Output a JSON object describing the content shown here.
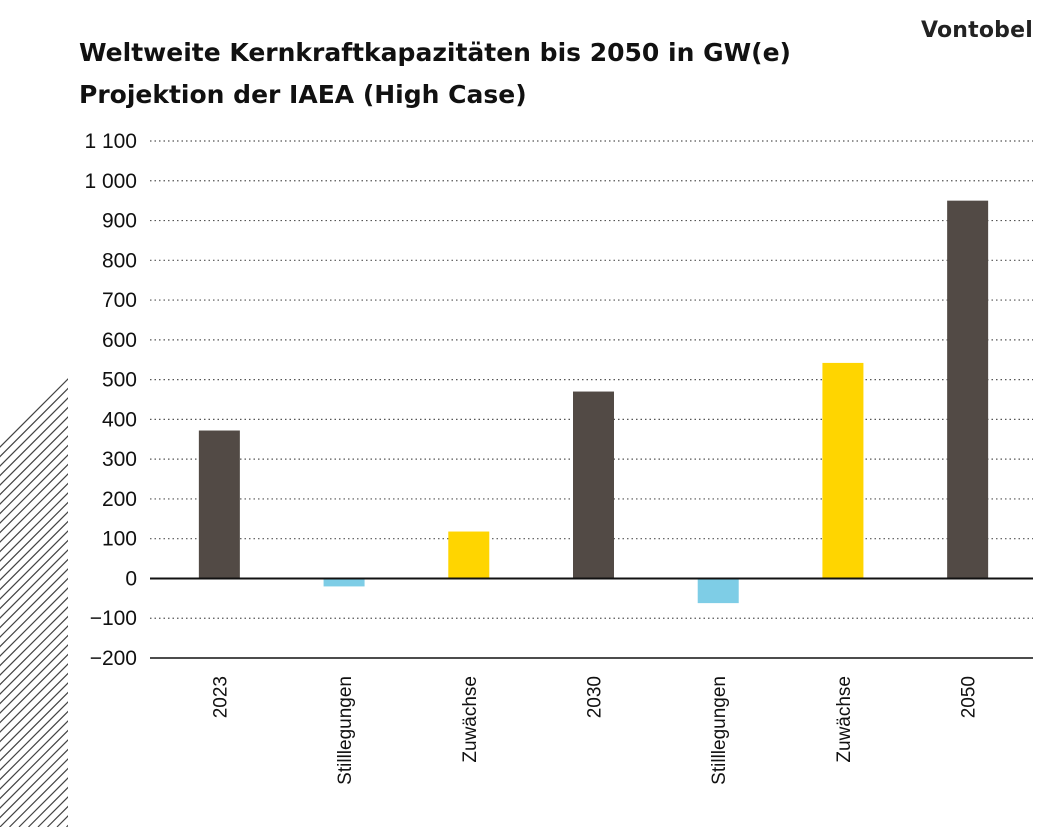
{
  "brand": "Vontobel",
  "title": "Weltweite Kernkraftkapazitäten bis 2050 in GW(e)",
  "subtitle": "Projektion der IAEA (High Case)",
  "colors": {
    "total": "#524a45",
    "decrease": "#7ecde6",
    "increase": "#ffd500",
    "hatch": "#444444"
  },
  "chart_data": {
    "type": "bar",
    "title": "Weltweite Kernkraftkapazitäten bis 2050 in GW(e)",
    "subtitle": "Projektion der IAEA (High Case)",
    "categories": [
      "2023",
      "Stilllegungen",
      "Zuwächse",
      "2030",
      "Stilllegungen",
      "Zuwächse",
      "2050"
    ],
    "values": [
      372,
      -20,
      118,
      470,
      -62,
      542,
      950
    ],
    "bar_kinds": [
      "total",
      "decrease",
      "increase",
      "total",
      "decrease",
      "increase",
      "total"
    ],
    "ylim": [
      -200,
      1100
    ],
    "yticks": [
      1100,
      1000,
      900,
      800,
      700,
      600,
      500,
      400,
      300,
      200,
      100,
      0,
      -100,
      -200
    ],
    "ytick_labels": [
      "1 100",
      "1 000",
      "900",
      "800",
      "700",
      "600",
      "500",
      "400",
      "300",
      "200",
      "100",
      "0",
      "−100",
      "−200"
    ],
    "grid": "dotted horizontal"
  }
}
